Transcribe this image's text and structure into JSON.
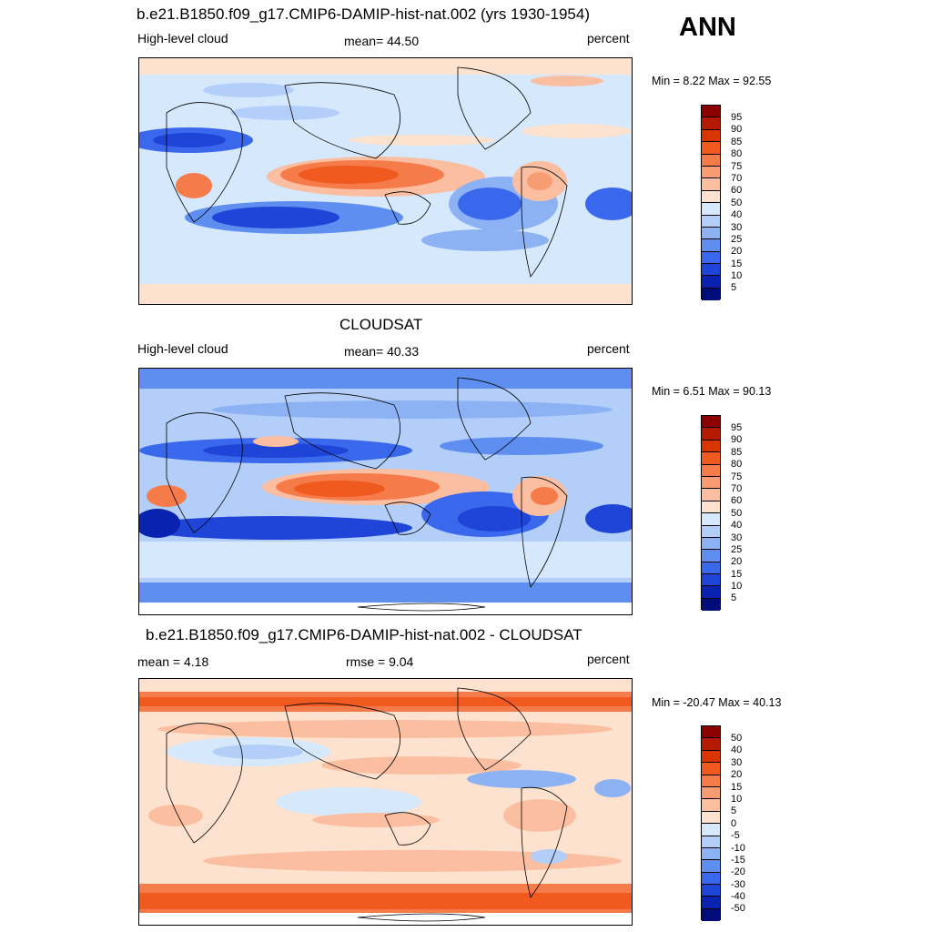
{
  "season": "ANN",
  "panels": [
    {
      "title": "b.e21.B1850.f09_g17.CMIP6-DAMIP-hist-nat.002 (yrs 1930-1954)",
      "left_label": "High-level cloud",
      "center_label": "mean=  44.50",
      "right_label": "percent",
      "minmax": "Min =   8.22 Max =  92.55",
      "colorbar_labels": [
        "95",
        "90",
        "85",
        "80",
        "75",
        "70",
        "60",
        "50",
        "40",
        "30",
        "25",
        "20",
        "15",
        "10",
        "5"
      ]
    },
    {
      "title": "CLOUDSAT",
      "left_label": "High-level cloud",
      "center_label": "mean=  40.33",
      "right_label": "percent",
      "minmax": "Min =   6.51 Max =  90.13",
      "colorbar_labels": [
        "95",
        "90",
        "85",
        "80",
        "75",
        "70",
        "60",
        "50",
        "40",
        "30",
        "25",
        "20",
        "15",
        "10",
        "5"
      ]
    },
    {
      "title": "b.e21.B1850.f09_g17.CMIP6-DAMIP-hist-nat.002 - CLOUDSAT",
      "left_label": "mean =   4.18",
      "center_label": "rmse =   9.04",
      "right_label": "percent",
      "minmax": "Min = -20.47 Max =  40.13",
      "colorbar_labels": [
        "50",
        "40",
        "30",
        "20",
        "15",
        "10",
        "5",
        "0",
        "-5",
        "-10",
        "-15",
        "-20",
        "-30",
        "-40",
        "-50"
      ]
    }
  ],
  "colors": {
    "palette_top_to_bottom": [
      "#8b0000",
      "#b31a00",
      "#d93500",
      "#f05a1e",
      "#f57c4a",
      "#f89c74",
      "#fbbea0",
      "#fde2cf",
      "#d6e8fb",
      "#b3cff9",
      "#8db2f4",
      "#5e8ef0",
      "#3a68ec",
      "#1f45d8",
      "#0a22b0",
      "#000c7a"
    ]
  }
}
